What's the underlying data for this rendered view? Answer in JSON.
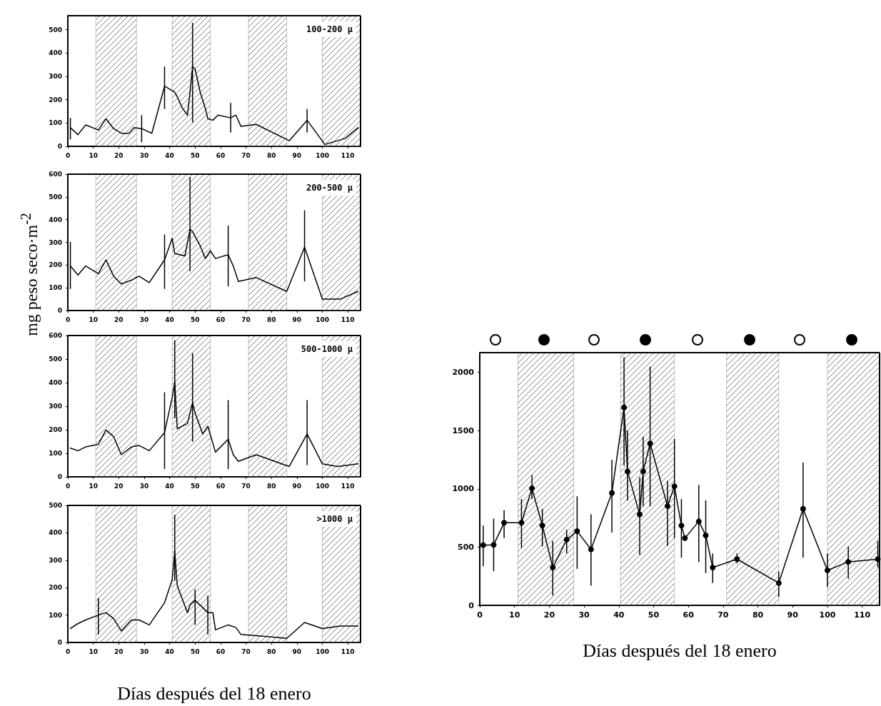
{
  "chart_data": [
    {
      "type": "line",
      "title": "100-200 µ",
      "xlim": [
        0,
        115
      ],
      "xticks": [
        0,
        10,
        20,
        30,
        40,
        50,
        60,
        70,
        80,
        90,
        100,
        110
      ],
      "ylim": [
        0,
        560
      ],
      "yticks": [
        0,
        100,
        200,
        300,
        400,
        500
      ],
      "line_style": "solid",
      "x": [
        1,
        4,
        7,
        12,
        15,
        18,
        21,
        24,
        26,
        29,
        33,
        38,
        42,
        43,
        45,
        47,
        48,
        49,
        50,
        52,
        54,
        55,
        57,
        59,
        64,
        66,
        68,
        74,
        87,
        94,
        101,
        109,
        114
      ],
      "series": [
        {
          "color": "#000000",
          "values": [
            80,
            50,
            92,
            70,
            118,
            76,
            56,
            56,
            80,
            76,
            56,
            258,
            232,
            212,
            164,
            134,
            232,
            342,
            332,
            232,
            164,
            118,
            112,
            134,
            122,
            134,
            86,
            94,
            24,
            112,
            8,
            34,
            80
          ],
          "errors": [
            [
              30,
              122
            ],
            null,
            null,
            null,
            null,
            null,
            null,
            null,
            null,
            [
              18,
              134
            ],
            null,
            [
              160,
              342
            ],
            null,
            null,
            null,
            null,
            null,
            [
              102,
              530
            ],
            null,
            null,
            null,
            null,
            null,
            null,
            [
              60,
              186
            ],
            null,
            null,
            null,
            null,
            [
              60,
              160
            ],
            null,
            null,
            null
          ]
        }
      ],
      "bands": [
        {
          "axis": "x",
          "from": 11,
          "to": 27
        },
        {
          "axis": "x",
          "from": 41,
          "to": 56
        },
        {
          "axis": "x",
          "from": 71,
          "to": 86
        },
        {
          "axis": "x",
          "from": 100,
          "to": 115
        }
      ]
    },
    {
      "type": "line",
      "title": "200-500 µ",
      "ylabel": "mg peso seco·m$^{-2}$",
      "xlim": [
        0,
        115
      ],
      "xticks": [
        0,
        10,
        20,
        30,
        40,
        50,
        60,
        70,
        80,
        90,
        100,
        110
      ],
      "ylim": [
        0,
        600
      ],
      "yticks": [
        0,
        100,
        200,
        300,
        400,
        500,
        600
      ],
      "line_style": "solid",
      "x": [
        1,
        4,
        7,
        12,
        15,
        18,
        21,
        25,
        28,
        32,
        38,
        41,
        42,
        46,
        48,
        49,
        52,
        54,
        56,
        58,
        63,
        65,
        67,
        74,
        86,
        93,
        100,
        107,
        114
      ],
      "series": [
        {
          "color": "#000000",
          "values": [
            196,
            156,
            196,
            162,
            223,
            151,
            117,
            134,
            151,
            123,
            223,
            318,
            251,
            240,
            358,
            347,
            285,
            229,
            263,
            229,
            246,
            196,
            128,
            145,
            84,
            279,
            50,
            50,
            84
          ],
          "errors": [
            [
              95,
              302
            ],
            null,
            null,
            null,
            null,
            null,
            null,
            null,
            null,
            null,
            [
              95,
              335
            ],
            null,
            null,
            null,
            [
              173,
              587
            ],
            null,
            null,
            null,
            null,
            null,
            [
              106,
              374
            ],
            null,
            null,
            null,
            null,
            [
              128,
              441
            ],
            null,
            null,
            null
          ]
        }
      ],
      "bands": [
        {
          "axis": "x",
          "from": 11,
          "to": 27
        },
        {
          "axis": "x",
          "from": 41,
          "to": 56
        },
        {
          "axis": "x",
          "from": 71,
          "to": 86
        },
        {
          "axis": "x",
          "from": 100,
          "to": 115
        }
      ]
    },
    {
      "type": "line",
      "title": "500-1000 µ",
      "xlim": [
        0,
        115
      ],
      "xticks": [
        0,
        10,
        20,
        30,
        40,
        50,
        60,
        70,
        80,
        90,
        100,
        110
      ],
      "ylim": [
        0,
        600
      ],
      "yticks": [
        0,
        100,
        200,
        300,
        400,
        500,
        600
      ],
      "line_style": "solid",
      "x": [
        1,
        4,
        7,
        12,
        15,
        18,
        21,
        25,
        28,
        32,
        38,
        41,
        42,
        43,
        47,
        49,
        50,
        53,
        55,
        58,
        63,
        65,
        67,
        74,
        87,
        94,
        100,
        106,
        114
      ],
      "series": [
        {
          "color": "#000000",
          "values": [
            122,
            111,
            127,
            138,
            199,
            171,
            94,
            127,
            133,
            111,
            188,
            337,
            403,
            204,
            227,
            315,
            271,
            182,
            215,
            105,
            160,
            94,
            66,
            94,
            44,
            182,
            55,
            44,
            55
          ],
          "errors": [
            null,
            null,
            null,
            null,
            null,
            null,
            null,
            null,
            null,
            null,
            [
              33,
              359
            ],
            null,
            [
              249,
              580
            ],
            null,
            null,
            [
              149,
              525
            ],
            null,
            null,
            null,
            null,
            [
              33,
              326
            ],
            null,
            null,
            null,
            null,
            [
              50,
              326
            ],
            null,
            null,
            null
          ]
        }
      ],
      "bands": [
        {
          "axis": "x",
          "from": 11,
          "to": 27
        },
        {
          "axis": "x",
          "from": 41,
          "to": 56
        },
        {
          "axis": "x",
          "from": 71,
          "to": 86
        },
        {
          "axis": "x",
          "from": 100,
          "to": 115
        }
      ]
    },
    {
      "type": "line",
      "title": ">1000 µ",
      "xlabel": "Días después del 18 enero",
      "xlim": [
        0,
        115
      ],
      "xticks": [
        0,
        10,
        20,
        30,
        40,
        50,
        60,
        70,
        80,
        90,
        100,
        110
      ],
      "ylim": [
        0,
        500
      ],
      "yticks": [
        0,
        100,
        200,
        300,
        400,
        500
      ],
      "line_style": "solid",
      "x": [
        1,
        4,
        7,
        12,
        15,
        18,
        21,
        25,
        28,
        32,
        38,
        41,
        42,
        43,
        47,
        48,
        50,
        55,
        57,
        58,
        63,
        66,
        68,
        80,
        86,
        93,
        100,
        107,
        114
      ],
      "series": [
        {
          "color": "#000000",
          "values": [
            51,
            69,
            82,
            100,
            109,
            87,
            42,
            82,
            82,
            64,
            145,
            229,
            332,
            207,
            109,
            136,
            154,
            109,
            109,
            46,
            64,
            55,
            29,
            20,
            15,
            73,
            51,
            60,
            60
          ],
          "errors": [
            null,
            null,
            null,
            [
              29,
              162
            ],
            null,
            null,
            null,
            null,
            null,
            null,
            null,
            null,
            [
              225,
              466
            ],
            null,
            null,
            null,
            [
              64,
              194
            ],
            [
              29,
              171
            ],
            null,
            null,
            null,
            null,
            null,
            null,
            null,
            null,
            null,
            null,
            null
          ]
        }
      ],
      "bands": [
        {
          "axis": "x",
          "from": 11,
          "to": 27
        },
        {
          "axis": "x",
          "from": 41,
          "to": 56
        },
        {
          "axis": "x",
          "from": 71,
          "to": 86
        },
        {
          "axis": "x",
          "from": 100,
          "to": 115
        }
      ]
    },
    {
      "type": "line",
      "xlabel": "Días después del 18 enero",
      "xlim": [
        0,
        115
      ],
      "xticks": [
        0,
        10,
        20,
        30,
        40,
        50,
        60,
        70,
        80,
        90,
        100,
        110
      ],
      "ylim": [
        0,
        2170
      ],
      "yticks": [
        0,
        500,
        1000,
        1500,
        2000
      ],
      "marker": "circle",
      "line_style": "solid",
      "x": [
        1,
        4,
        7,
        12,
        15,
        18,
        21,
        25,
        28,
        32,
        38,
        41.5,
        42.5,
        46,
        47,
        49,
        54,
        56,
        58,
        59,
        63,
        65,
        67,
        74,
        86,
        93,
        100,
        106,
        114.5
      ],
      "series": [
        {
          "color": "#000000",
          "values": [
            517,
            520,
            709,
            709,
            1005,
            685,
            325,
            565,
            637,
            481,
            966,
            1700,
            1150,
            781,
            1150,
            1390,
            853,
            1022,
            685,
            577,
            721,
            601,
            325,
            397,
            192,
            829,
            300,
            373,
            397
          ],
          "errors": [
            [
              336,
              685
            ],
            [
              293,
              745
            ],
            [
              577,
              817
            ],
            [
              493,
              913
            ],
            [
              913,
              1118
            ],
            [
              505,
              829
            ],
            [
              84,
              553
            ],
            [
              445,
              649
            ],
            [
              313,
              937
            ],
            [
              168,
              781
            ],
            [
              625,
              1250
            ],
            [
              1200,
              2130
            ],
            [
              900,
              1500
            ],
            [
              433,
              1100
            ],
            [
              850,
              1450
            ],
            [
              850,
              2050
            ],
            [
              510,
              1070
            ],
            [
              577,
              1430
            ],
            [
              409,
              913
            ],
            null,
            [
              373,
              1034
            ],
            [
              276,
              901
            ],
            [
              192,
              445
            ],
            [
              361,
              445
            ],
            [
              72,
              288
            ],
            [
              409,
              1226
            ],
            [
              156,
              445
            ],
            [
              228,
              505
            ],
            [
              325,
              553
            ]
          ]
        }
      ],
      "bands": [
        {
          "axis": "x",
          "from": 11,
          "to": 27
        },
        {
          "axis": "x",
          "from": 40.5,
          "to": 56
        },
        {
          "axis": "x",
          "from": 71,
          "to": 86
        },
        {
          "axis": "x",
          "from": 100,
          "to": 115
        }
      ]
    }
  ]
}
